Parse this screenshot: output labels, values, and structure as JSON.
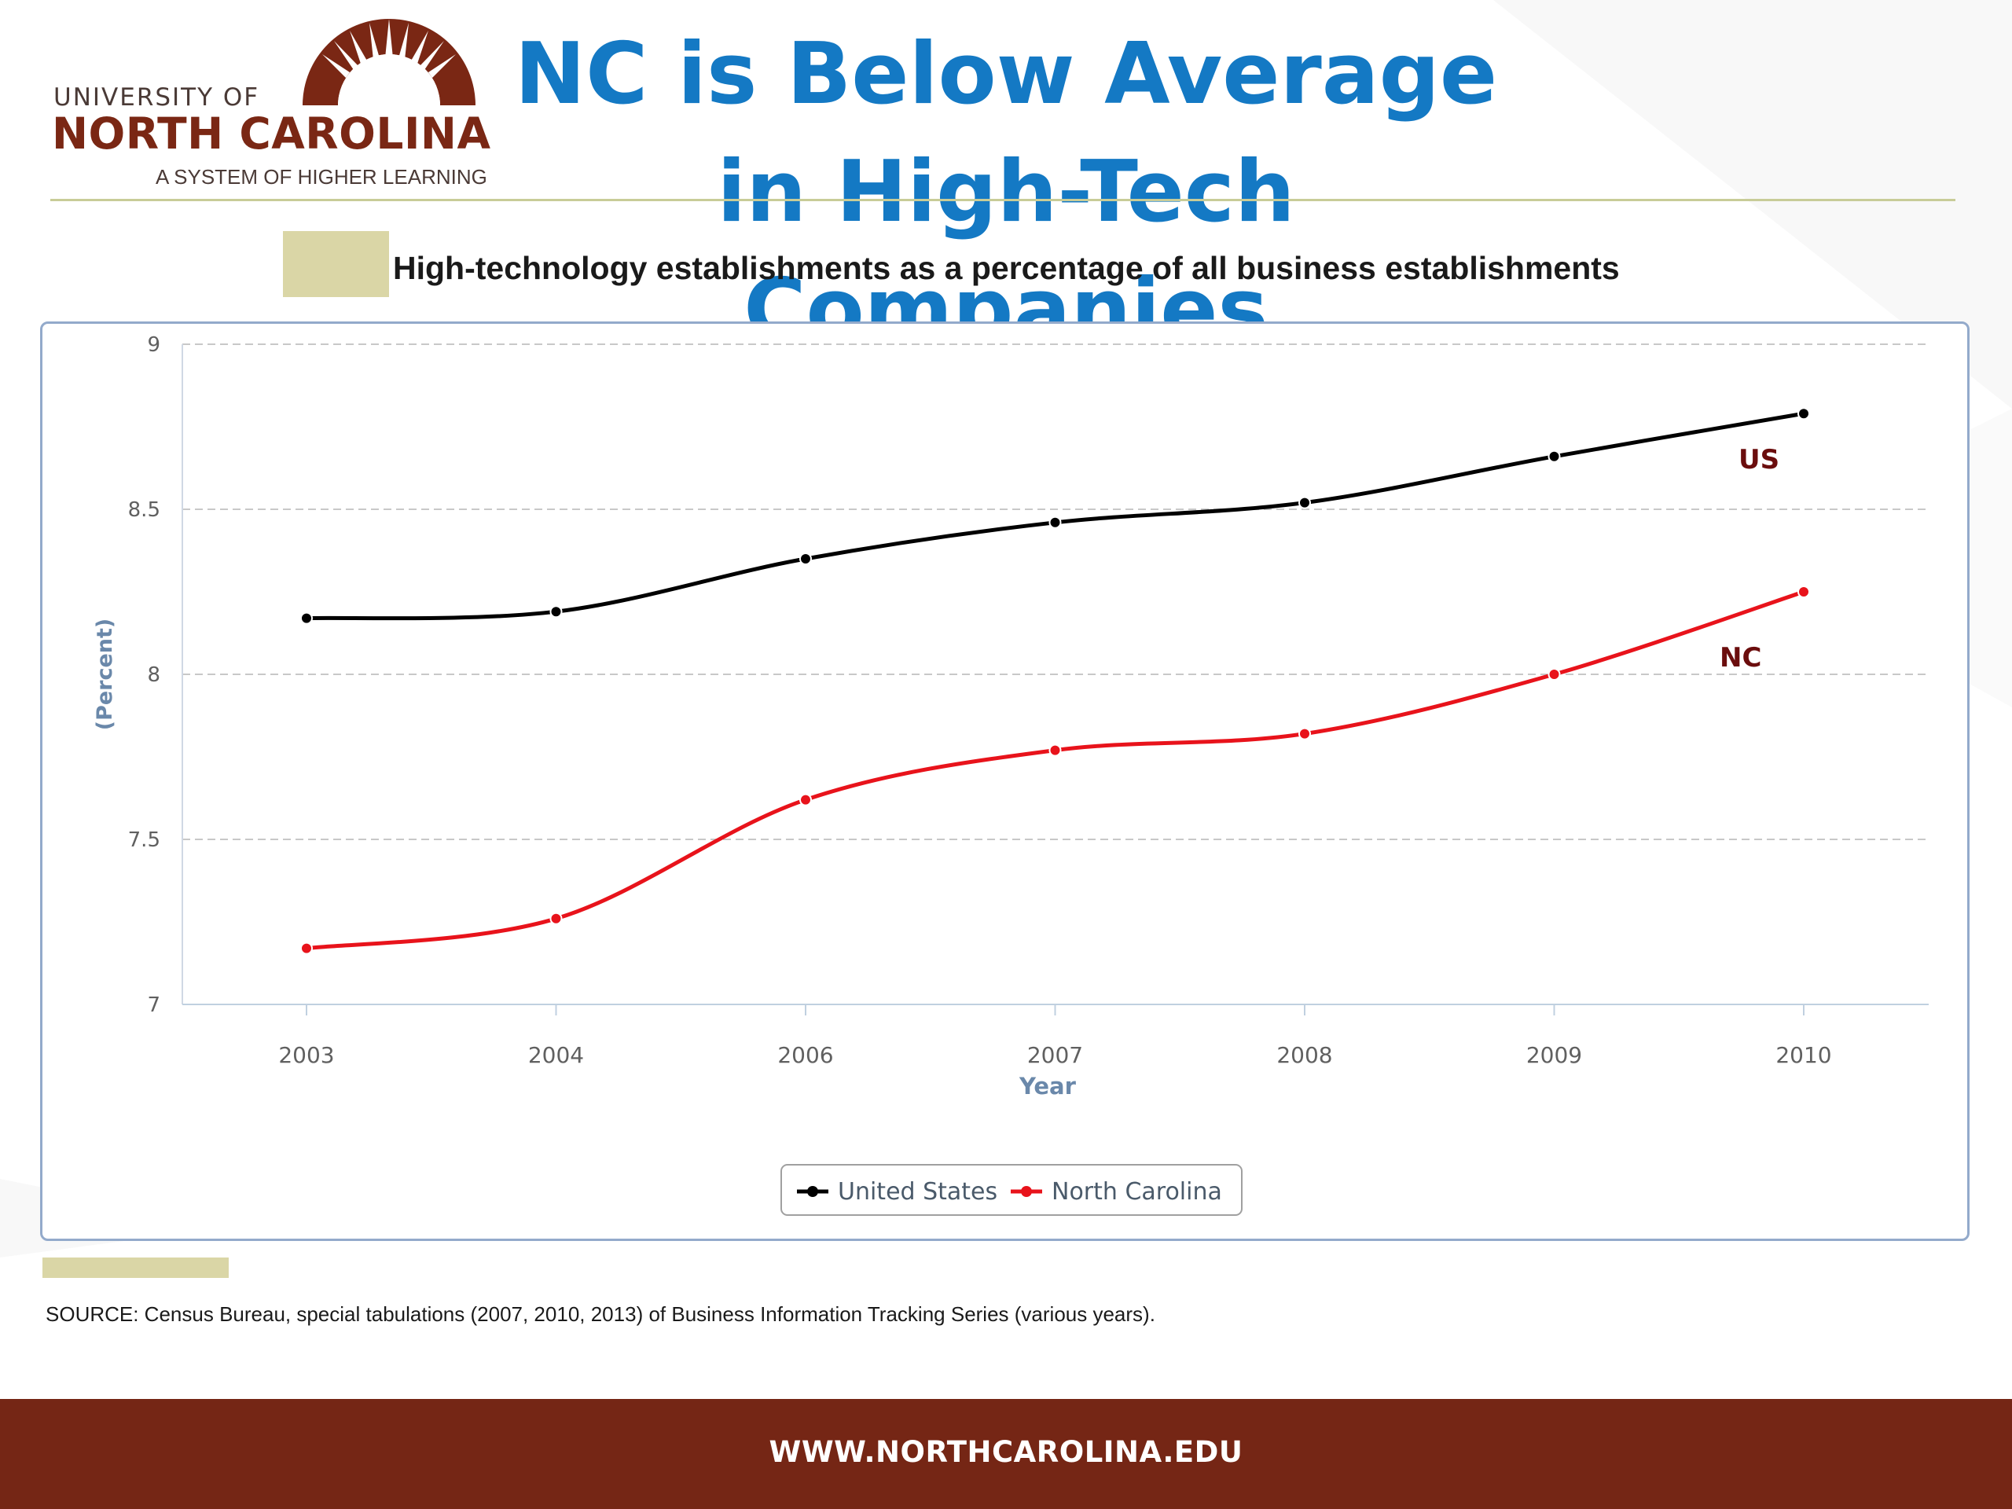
{
  "logo": {
    "line1": "UNIVERSITY OF",
    "line2": "NORTH CAROLINA",
    "line3": "A SYSTEM OF HIGHER LEARNING"
  },
  "title": {
    "line1": "NC is Below Average",
    "line2": "in High-Tech Companies"
  },
  "colors": {
    "title": "#1479c4",
    "brand": "#752615",
    "us_series": "#000000",
    "nc_series": "#e8131b",
    "annotation": "#6b0d0d"
  },
  "chart_data": {
    "type": "line",
    "title": "High-technology establishments as a percentage of all business establishments",
    "xlabel": "Year",
    "ylabel": "(Percent)",
    "categories": [
      "2003",
      "2004",
      "2006",
      "2007",
      "2008",
      "2009",
      "2010"
    ],
    "ylim": [
      7,
      9
    ],
    "yticks": [
      "7",
      "7.5",
      "8",
      "8.5",
      "9"
    ],
    "grid": "dashed horizontal",
    "series": [
      {
        "name": "United States",
        "values": [
          8.17,
          8.19,
          8.35,
          8.46,
          8.52,
          8.66,
          8.79
        ]
      },
      {
        "name": "North Carolina",
        "values": [
          7.17,
          7.26,
          7.62,
          7.77,
          7.82,
          8.0,
          8.25
        ]
      }
    ],
    "annotations": [
      {
        "text": "US",
        "series": "United States"
      },
      {
        "text": "NC",
        "series": "North Carolina"
      }
    ],
    "legend": "bottom-center"
  },
  "source": "SOURCE: Census Bureau, special tabulations (2007, 2010, 2013) of Business Information Tracking Series (various years).",
  "footer": {
    "url": "WWW.NORTHCAROLINA.EDU"
  }
}
